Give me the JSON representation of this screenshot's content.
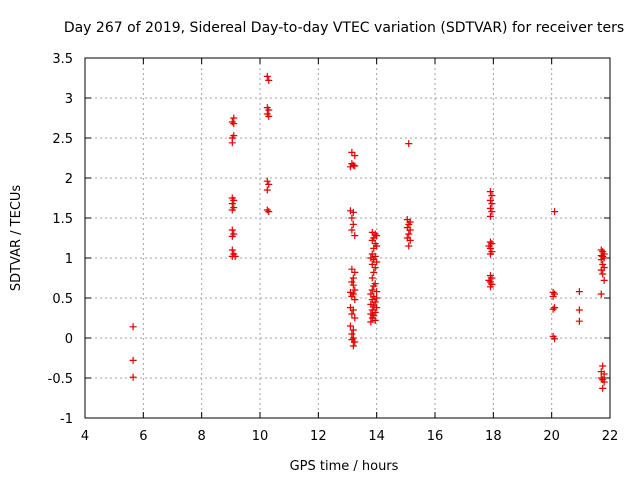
{
  "chart_data": {
    "type": "scatter",
    "title": "Day 267 of 2019, Sidereal Day-to-day VTEC variation (SDTVAR) for receiver ters",
    "xlabel": "GPS time / hours",
    "ylabel": "SDTVAR / TECUs",
    "xlim": [
      4,
      22
    ],
    "ylim": [
      -1,
      3.5
    ],
    "x_ticks": [
      4,
      6,
      8,
      10,
      12,
      14,
      16,
      18,
      20,
      22
    ],
    "y_ticks": [
      -1,
      -0.5,
      0,
      0.5,
      1,
      1.5,
      2,
      2.5,
      3,
      3.5
    ],
    "x_tick_labels": [
      "4",
      "6",
      "8",
      "10",
      "12",
      "14",
      "16",
      "18",
      "20",
      "22"
    ],
    "y_tick_labels": [
      "-1",
      "-0.5",
      "0",
      "0.5",
      "1",
      "1.5",
      "2",
      "2.5",
      "3",
      "3.5"
    ],
    "grid": true,
    "marker": "+",
    "color": "#e00000",
    "series": [
      {
        "name": "ters",
        "points": [
          [
            5.65,
            0.14
          ],
          [
            5.65,
            -0.28
          ],
          [
            5.65,
            -0.49
          ],
          [
            9.05,
            2.7
          ],
          [
            9.1,
            2.75
          ],
          [
            9.05,
            2.5
          ],
          [
            9.1,
            2.53
          ],
          [
            9.05,
            2.44
          ],
          [
            9.1,
            2.68
          ],
          [
            9.05,
            1.75
          ],
          [
            9.1,
            1.72
          ],
          [
            9.05,
            1.68
          ],
          [
            9.1,
            1.63
          ],
          [
            9.05,
            1.6
          ],
          [
            9.05,
            1.35
          ],
          [
            9.1,
            1.3
          ],
          [
            9.05,
            1.27
          ],
          [
            9.05,
            1.1
          ],
          [
            9.1,
            1.05
          ],
          [
            9.05,
            1.02
          ],
          [
            9.15,
            1.02
          ],
          [
            10.25,
            3.27
          ],
          [
            10.3,
            3.22
          ],
          [
            10.25,
            2.88
          ],
          [
            10.3,
            2.85
          ],
          [
            10.25,
            2.8
          ],
          [
            10.3,
            2.77
          ],
          [
            10.25,
            1.96
          ],
          [
            10.3,
            1.92
          ],
          [
            10.25,
            1.85
          ],
          [
            10.25,
            1.6
          ],
          [
            10.3,
            1.58
          ],
          [
            13.15,
            2.32
          ],
          [
            13.25,
            2.28
          ],
          [
            13.15,
            2.18
          ],
          [
            13.2,
            2.16
          ],
          [
            13.25,
            2.15
          ],
          [
            13.1,
            2.14
          ],
          [
            13.1,
            1.59
          ],
          [
            13.2,
            1.57
          ],
          [
            13.15,
            1.5
          ],
          [
            13.2,
            1.42
          ],
          [
            13.15,
            1.35
          ],
          [
            13.25,
            1.28
          ],
          [
            13.15,
            0.86
          ],
          [
            13.25,
            0.82
          ],
          [
            13.2,
            0.75
          ],
          [
            13.15,
            0.7
          ],
          [
            13.2,
            0.66
          ],
          [
            13.25,
            0.6
          ],
          [
            13.1,
            0.57
          ],
          [
            13.2,
            0.55
          ],
          [
            13.15,
            0.52
          ],
          [
            13.25,
            0.48
          ],
          [
            13.1,
            0.38
          ],
          [
            13.2,
            0.35
          ],
          [
            13.15,
            0.3
          ],
          [
            13.25,
            0.25
          ],
          [
            13.1,
            0.15
          ],
          [
            13.2,
            0.1
          ],
          [
            13.15,
            0.05
          ],
          [
            13.2,
            0.0
          ],
          [
            13.15,
            -0.02
          ],
          [
            13.25,
            -0.05
          ],
          [
            13.2,
            -0.1
          ],
          [
            13.85,
            1.32
          ],
          [
            13.95,
            1.3
          ],
          [
            14.0,
            1.28
          ],
          [
            13.9,
            1.25
          ],
          [
            13.85,
            1.22
          ],
          [
            13.95,
            1.18
          ],
          [
            14.0,
            1.15
          ],
          [
            13.9,
            1.12
          ],
          [
            13.85,
            1.05
          ],
          [
            13.95,
            1.02
          ],
          [
            13.8,
            1.0
          ],
          [
            13.9,
            0.98
          ],
          [
            14.0,
            0.95
          ],
          [
            13.85,
            0.92
          ],
          [
            13.95,
            0.88
          ],
          [
            13.9,
            0.82
          ],
          [
            13.85,
            0.75
          ],
          [
            13.95,
            0.68
          ],
          [
            13.9,
            0.65
          ],
          [
            13.85,
            0.6
          ],
          [
            14.0,
            0.58
          ],
          [
            13.8,
            0.55
          ],
          [
            13.9,
            0.52
          ],
          [
            14.0,
            0.5
          ],
          [
            13.85,
            0.48
          ],
          [
            13.95,
            0.45
          ],
          [
            13.8,
            0.42
          ],
          [
            13.9,
            0.4
          ],
          [
            14.0,
            0.38
          ],
          [
            13.85,
            0.35
          ],
          [
            13.95,
            0.32
          ],
          [
            13.8,
            0.3
          ],
          [
            13.9,
            0.28
          ],
          [
            13.85,
            0.25
          ],
          [
            13.95,
            0.22
          ],
          [
            13.8,
            0.2
          ],
          [
            15.1,
            2.43
          ],
          [
            15.05,
            1.48
          ],
          [
            15.15,
            1.45
          ],
          [
            15.1,
            1.42
          ],
          [
            15.05,
            1.38
          ],
          [
            15.15,
            1.35
          ],
          [
            15.1,
            1.3
          ],
          [
            15.05,
            1.25
          ],
          [
            15.15,
            1.22
          ],
          [
            15.1,
            1.15
          ],
          [
            17.9,
            1.83
          ],
          [
            17.95,
            1.78
          ],
          [
            17.9,
            1.72
          ],
          [
            17.95,
            1.68
          ],
          [
            17.9,
            1.62
          ],
          [
            17.95,
            1.58
          ],
          [
            17.9,
            1.52
          ],
          [
            17.9,
            1.2
          ],
          [
            17.95,
            1.18
          ],
          [
            17.85,
            1.15
          ],
          [
            17.9,
            1.12
          ],
          [
            17.95,
            1.08
          ],
          [
            17.9,
            1.05
          ],
          [
            17.9,
            0.78
          ],
          [
            17.95,
            0.75
          ],
          [
            17.85,
            0.72
          ],
          [
            17.9,
            0.7
          ],
          [
            17.95,
            0.67
          ],
          [
            17.9,
            0.64
          ],
          [
            20.1,
            1.58
          ],
          [
            20.05,
            0.57
          ],
          [
            20.1,
            0.55
          ],
          [
            20.05,
            0.52
          ],
          [
            20.1,
            0.38
          ],
          [
            20.05,
            0.36
          ],
          [
            20.05,
            0.02
          ],
          [
            20.1,
            -0.01
          ],
          [
            20.95,
            0.58
          ],
          [
            20.95,
            0.35
          ],
          [
            20.95,
            0.21
          ],
          [
            21.7,
            1.1
          ],
          [
            21.75,
            1.08
          ],
          [
            21.8,
            1.05
          ],
          [
            21.7,
            1.03
          ],
          [
            21.75,
            1.02
          ],
          [
            21.8,
            1.0
          ],
          [
            21.7,
            0.98
          ],
          [
            21.75,
            0.92
          ],
          [
            21.8,
            0.88
          ],
          [
            21.7,
            0.85
          ],
          [
            21.75,
            0.8
          ],
          [
            21.8,
            0.72
          ],
          [
            21.7,
            0.55
          ],
          [
            21.75,
            -0.35
          ],
          [
            21.7,
            -0.42
          ],
          [
            21.8,
            -0.45
          ],
          [
            21.7,
            -0.5
          ],
          [
            21.75,
            -0.52
          ],
          [
            21.8,
            -0.55
          ],
          [
            21.75,
            -0.63
          ]
        ]
      }
    ]
  }
}
